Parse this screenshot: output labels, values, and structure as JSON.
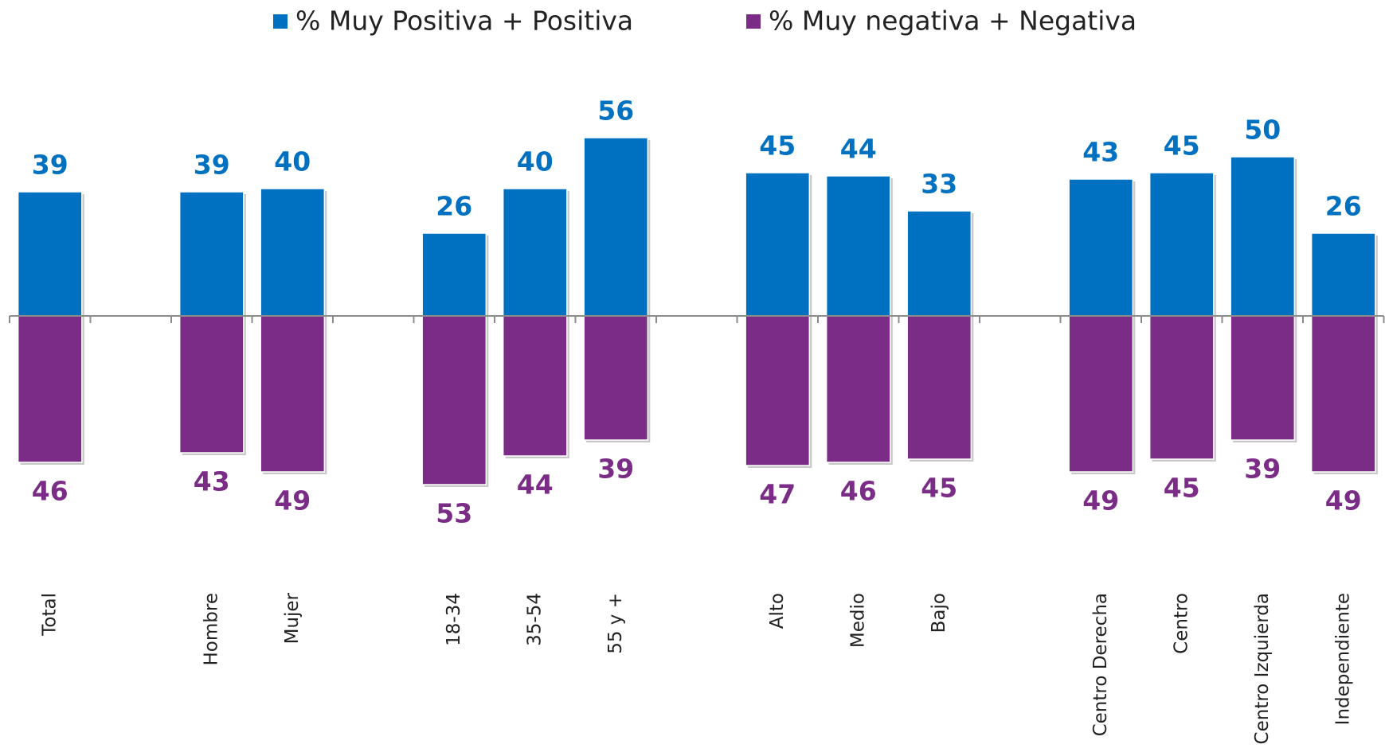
{
  "chart_data": {
    "type": "bar",
    "categories": [
      "Total",
      null,
      "Hombre",
      "Mujer",
      null,
      "18-34",
      "35-54",
      "55 y +",
      null,
      "Alto",
      "Medio",
      "Bajo",
      null,
      "Centro Derecha",
      "Centro",
      "Centro Izquierda",
      "Independiente"
    ],
    "series": [
      {
        "name": "% Muy Positiva + Positiva",
        "color": "#0070c0",
        "values": [
          39,
          null,
          39,
          40,
          null,
          26,
          40,
          56,
          null,
          45,
          44,
          33,
          null,
          43,
          45,
          50,
          26
        ]
      },
      {
        "name": "% Muy negativa + Negativa",
        "color": "#7b2c87",
        "values": [
          -46,
          null,
          -43,
          -49,
          null,
          -53,
          -44,
          -39,
          null,
          -47,
          -46,
          -45,
          null,
          -49,
          -45,
          -39,
          -49
        ],
        "value_labels": [
          "46",
          null,
          "43",
          "49",
          null,
          "53",
          "44",
          "39",
          null,
          "47",
          "46",
          "45",
          null,
          "49",
          "45",
          "39",
          "49"
        ]
      }
    ],
    "ylim": [
      -70,
      70
    ],
    "legend": "top"
  }
}
